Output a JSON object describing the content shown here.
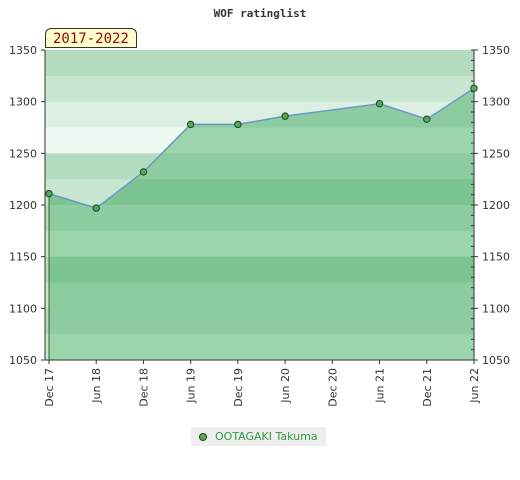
{
  "chart_data": {
    "type": "area",
    "title": "WOF ratinglist",
    "badge": "2017-2022",
    "x_labels": [
      "Dec 17",
      "Jun 18",
      "Dec 18",
      "Jun 19",
      "Dec 19",
      "Jun 20",
      "Dec 20",
      "Jun 21",
      "Dec 21",
      "Jun 22"
    ],
    "series": [
      {
        "name": "OOTAGAKI Takuma",
        "points": [
          {
            "x": "Dec 17",
            "y": 1211
          },
          {
            "x": "Jun 18",
            "y": 1197
          },
          {
            "x": "Dec 18",
            "y": 1232
          },
          {
            "x": "Jun 19",
            "y": 1278
          },
          {
            "x": "Dec 19",
            "y": 1278
          },
          {
            "x": "Jun 20",
            "y": 1286
          },
          {
            "x": "Jun 21",
            "y": 1298
          },
          {
            "x": "Dec 21",
            "y": 1283
          },
          {
            "x": "Jun 22",
            "y": 1313
          }
        ]
      }
    ],
    "ylim": [
      1050,
      1350
    ],
    "y_ticks": [
      1050,
      1100,
      1150,
      1200,
      1250,
      1300,
      1350
    ],
    "legend_position": "bottom-center",
    "colors": {
      "line": "#6699cc",
      "marker": "#55aa55",
      "marker_edge": "#224422",
      "legend_text": "#339944"
    }
  }
}
